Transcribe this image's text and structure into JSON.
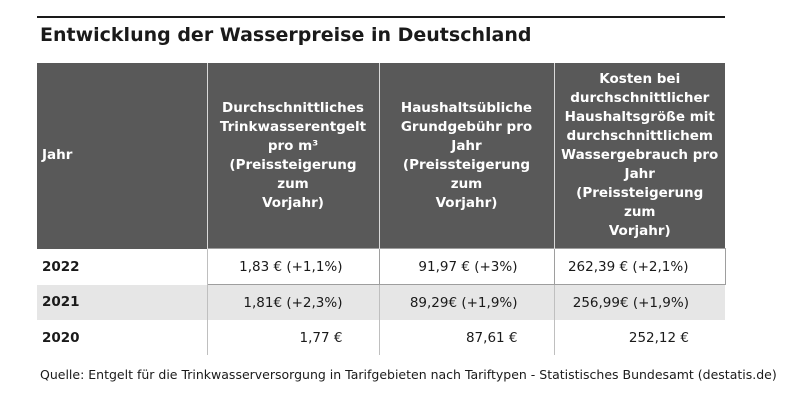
{
  "title": "Entwicklung der Wasserpreise in Deutschland",
  "source": "Quelle: Entgelt für die Trinkwasserversorgung in Tarifgebieten nach Tariftypen - Statistisches Bundesamt (destatis.de)",
  "colors": {
    "header_bg": "#595959",
    "header_text": "#ffffff",
    "row_alt_bg": "#e6e6e6"
  },
  "chart_data": {
    "type": "table",
    "title": "Entwicklung der Wasserpreise in Deutschland",
    "columns": [
      [
        "Jahr"
      ],
      [
        "Durchschnittliches",
        "Trinkwasserentgelt",
        "pro m³",
        "(Preissteigerung zum",
        "Vorjahr)"
      ],
      [
        "Haushaltsübliche",
        "Grundgebühr pro Jahr",
        "(Preissteigerung zum",
        "Vorjahr)"
      ],
      [
        "Kosten bei",
        "durchschnittlicher",
        "Haushaltsgröße mit",
        "durchschnittlichem",
        "Wassergebrauch pro",
        "Jahr",
        "(Preissteigerung zum",
        "Vorjahr)"
      ]
    ],
    "rows": [
      [
        "2022",
        "1,83 € (+1,1%)",
        "91,97 € (+3%)",
        "262,39 € (+2,1%)"
      ],
      [
        "2021",
        "1,81€ (+2,3%)",
        "89,29€ (+1,9%)",
        "256,99€ (+1,9%)"
      ],
      [
        "2020",
        "1,77 €",
        "87,61 €",
        "252,12 €"
      ]
    ]
  }
}
